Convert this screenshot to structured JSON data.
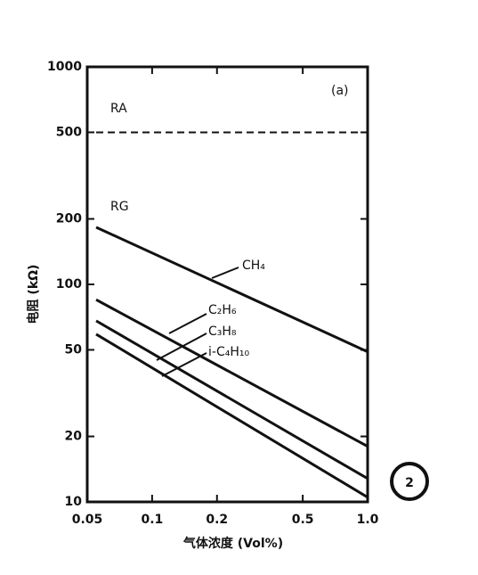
{
  "chart_data": {
    "type": "line",
    "title": "(a)",
    "xlabel": "气体浓度 (Vol%)",
    "ylabel": "电阻 (kΩ)",
    "xlog": true,
    "ylog": true,
    "xlim": [
      0.05,
      1.0
    ],
    "ylim": [
      10,
      1000
    ],
    "xticks": [
      0.05,
      0.1,
      0.2,
      0.5,
      {
        "value": 1,
        "label": "1.0"
      }
    ],
    "yticks": [
      10,
      20,
      50,
      100,
      200,
      500,
      1000
    ],
    "x": [
      0.055,
      1
    ],
    "series": [
      {
        "name": "RA",
        "color": "#111111",
        "dash": true,
        "values": [
          500,
          500
        ]
      },
      {
        "name": "CH₄",
        "color": "#111111",
        "dash": false,
        "values": [
          183,
          49
        ]
      },
      {
        "name": "C₂H₆",
        "color": "#111111",
        "dash": false,
        "values": [
          85,
          18
        ]
      },
      {
        "name": "C₃H₈",
        "color": "#111111",
        "dash": false,
        "values": [
          68,
          12.8
        ]
      },
      {
        "name": "i-C₄H₁₀",
        "color": "#111111",
        "dash": false,
        "values": [
          59,
          10.5
        ]
      }
    ],
    "annotations": [
      "RG"
    ],
    "badge": "2"
  }
}
